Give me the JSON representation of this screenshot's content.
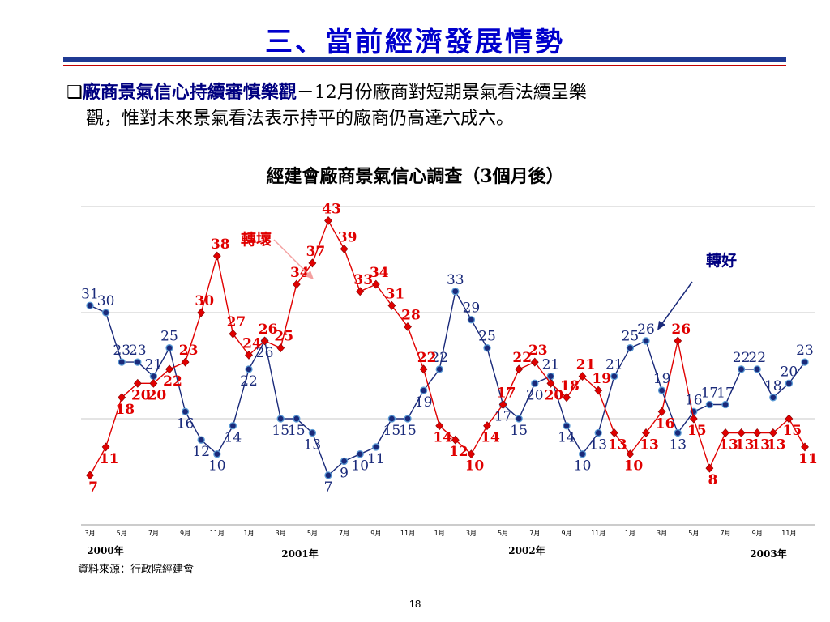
{
  "slide": {
    "title": "三、當前經濟發展情勢",
    "bullet_marker": "❑",
    "bullet_head": "廠商景氣信心持續審慎樂觀",
    "bullet_dash": "－",
    "bullet_text_1": "12月份廠商對短期景氣看法續呈樂",
    "bullet_text_2": "觀，惟對未來景氣看法表示持平的廠商仍高達六成六。",
    "source": "資料來源：行政院經建會",
    "page_number": "18"
  },
  "chart_data": {
    "type": "line",
    "title": "經建會廠商景氣信心調查（3個月後）",
    "x": [
      "2000-03",
      "2000-04",
      "2000-05",
      "2000-06",
      "2000-07",
      "2000-08",
      "2000-09",
      "2000-10",
      "2000-11",
      "2000-12",
      "2001-01",
      "2001-02",
      "2001-03",
      "2001-04",
      "2001-05",
      "2001-06",
      "2001-07",
      "2001-08",
      "2001-09",
      "2001-10",
      "2001-11",
      "2001-12",
      "2002-01",
      "2002-02",
      "2002-03",
      "2002-04",
      "2002-05",
      "2002-06",
      "2002-07",
      "2002-08",
      "2002-09",
      "2002-10",
      "2002-11",
      "2002-12",
      "2003-01",
      "2003-02",
      "2003-03",
      "2003-04",
      "2003-05",
      "2003-06",
      "2003-07",
      "2003-08",
      "2003-09",
      "2003-10",
      "2003-11",
      "2003-12"
    ],
    "tick_labels": [
      "3月",
      "5月",
      "7月",
      "9月",
      "11月",
      "1月",
      "3月",
      "5月",
      "7月",
      "9月",
      "11月",
      "1月",
      "3月",
      "5月",
      "7月",
      "9月",
      "11月",
      "1月",
      "3月",
      "5月",
      "7月",
      "9月",
      "11月"
    ],
    "year_labels": [
      "2000年",
      "2001年",
      "2002年",
      "2003年"
    ],
    "series": [
      {
        "color": "#1a2a7a",
        "marker": "circle",
        "values": [
          31,
          30,
          23,
          23,
          21,
          25,
          16,
          12,
          10,
          14,
          22,
          26,
          15,
          15,
          13,
          7,
          9,
          10,
          11,
          15,
          15,
          19,
          22,
          33,
          29,
          25,
          17,
          15,
          20,
          21,
          14,
          10,
          13,
          21,
          25,
          26,
          19,
          13,
          16,
          17,
          17,
          22,
          22,
          18,
          20,
          23
        ]
      },
      {
        "color": "#e00000",
        "marker": "diamond",
        "values": [
          7,
          11,
          18,
          20,
          20,
          22,
          23,
          30,
          38,
          27,
          24,
          26,
          25,
          34,
          37,
          43,
          39,
          33,
          34,
          31,
          28,
          22,
          14,
          12,
          10,
          14,
          17,
          22,
          23,
          20,
          18,
          21,
          19,
          13,
          10,
          13,
          16,
          26,
          15,
          8,
          13,
          13,
          13,
          13,
          15,
          11
        ]
      }
    ],
    "annotations": [
      {
        "text": "轉壞",
        "color": "#e00000"
      },
      {
        "text": "轉好",
        "color": "#000080"
      }
    ],
    "ylim": [
      0,
      45
    ],
    "grid": true
  }
}
